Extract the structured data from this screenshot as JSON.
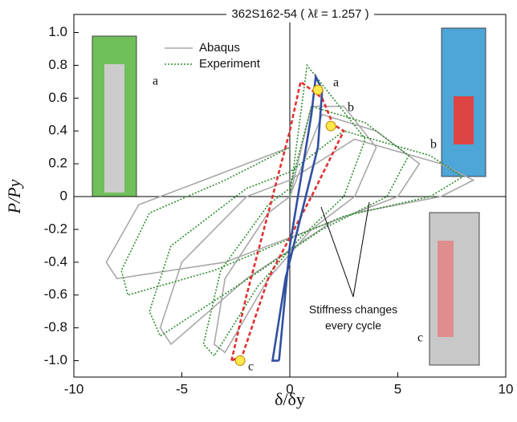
{
  "chart_data": {
    "type": "line",
    "title": "362S162-54 ( λℓ = 1.257 )",
    "x_label": "δ/δy",
    "y_label": "P/Py",
    "xlim": [
      -10,
      10
    ],
    "xticks": [
      -10,
      -5,
      0,
      5,
      10
    ],
    "ylim": [
      -1.1,
      1.11
    ],
    "yticks": [
      {
        "value": 1,
        "label": "1.0"
      },
      0.8,
      0.6,
      0.4,
      0.2,
      0,
      -0.2,
      -0.4,
      -0.6,
      -0.8,
      {
        "value": -1,
        "label": "-1.0"
      }
    ],
    "legend": "upper left",
    "series": [
      {
        "name": "Abaqus",
        "color": "#a8a8a8",
        "dash": "none",
        "width": 1.6,
        "x": [
          0,
          1,
          2.5,
          4,
          3,
          1,
          -1,
          -3,
          -3.5,
          -3,
          -1,
          0,
          1.5,
          4,
          6,
          5,
          2,
          -2,
          -5.5,
          -6,
          -5,
          -2,
          0,
          3,
          7,
          8.5,
          7,
          3,
          -3,
          -8,
          -8.5,
          -7,
          -4,
          0
        ],
        "values": [
          0,
          0.55,
          0.55,
          0.3,
          0,
          -0.2,
          -0.5,
          -0.95,
          -0.9,
          -0.5,
          -0.1,
          0,
          0.5,
          0.4,
          0.2,
          0,
          -0.15,
          -0.5,
          -0.9,
          -0.8,
          -0.4,
          0,
          0.1,
          0.35,
          0.2,
          0.1,
          0,
          -0.1,
          -0.4,
          -0.5,
          -0.4,
          -0.05,
          0.1,
          0.3
        ]
      },
      {
        "name": "Experiment",
        "color": "#2e8b2e",
        "dash": "2 2",
        "width": 1.6,
        "x": [
          0,
          0.8,
          2,
          3.5,
          2.5,
          0.5,
          -1.5,
          -3.5,
          -4,
          -3.2,
          -1,
          0,
          1,
          3.5,
          5.5,
          4.5,
          1.5,
          -2.5,
          -6,
          -6.5,
          -5.5,
          -2,
          0,
          2.5,
          6.5,
          8,
          6.5,
          2.5,
          -3.5,
          -7.5,
          -7.8,
          -6.5,
          -3,
          0
        ],
        "values": [
          0,
          0.8,
          0.6,
          0.35,
          0,
          -0.25,
          -0.55,
          -0.97,
          -0.9,
          -0.45,
          -0.05,
          0.05,
          0.55,
          0.45,
          0.25,
          0,
          -0.2,
          -0.55,
          -0.85,
          -0.7,
          -0.3,
          0.05,
          0.15,
          0.4,
          0.25,
          0.12,
          0,
          -0.12,
          -0.45,
          -0.6,
          -0.45,
          -0.1,
          0.1,
          0.3
        ]
      },
      {
        "color": "#e03030",
        "dash": "5 3",
        "width": 2.6,
        "x": [
          -2.7,
          -2,
          0,
          0.5,
          1.5,
          2,
          2.5,
          1,
          -1,
          -2.2,
          -2.7
        ],
        "values": [
          -1,
          -0.6,
          0.4,
          0.7,
          0.6,
          0.44,
          0.4,
          0,
          -0.5,
          -0.97,
          -1
        ]
      },
      {
        "color": "#3050a0",
        "dash": "none",
        "width": 2.6,
        "x": [
          -0.5,
          0,
          1,
          1.2,
          1.5,
          1.3,
          -0.2,
          -0.8,
          -0.5
        ],
        "values": [
          -1,
          -0.3,
          0.5,
          0.73,
          0.65,
          0.3,
          -0.5,
          -1,
          -1
        ]
      }
    ],
    "markers": {
      "color": "#ffe84a",
      "x": [
        1.3,
        1.9,
        -2.3
      ],
      "values": [
        0.65,
        0.43,
        -1
      ]
    },
    "annotations": [
      "a",
      "b",
      "c",
      "a",
      "b",
      "c"
    ],
    "note": [
      "Stiffness changes",
      "every cycle"
    ]
  }
}
